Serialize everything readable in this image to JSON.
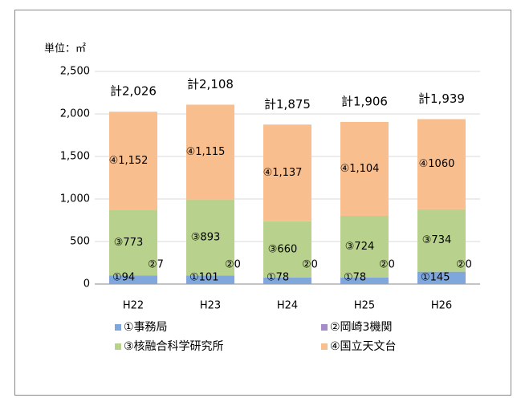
{
  "chart_data": {
    "type": "stacked_bar",
    "unit_label": "単位：㎡",
    "categories": [
      "H22",
      "H23",
      "H24",
      "H25",
      "H26"
    ],
    "series": [
      {
        "name": "①事務局",
        "color": "#7fa7dc",
        "values": [
          94,
          101,
          78,
          78,
          145
        ],
        "value_labels": [
          "①94",
          "①101",
          "①78",
          "①78",
          "①145"
        ]
      },
      {
        "name": "②岡崎3機関",
        "color": "#a68dca",
        "values": [
          7,
          0,
          0,
          0,
          0
        ],
        "value_labels": [
          "②7",
          "②0",
          "②0",
          "②0",
          "②0"
        ]
      },
      {
        "name": "③核融合科学研究所",
        "color": "#b8d18c",
        "values": [
          773,
          893,
          660,
          724,
          734
        ],
        "value_labels": [
          "③773",
          "③893",
          "③660",
          "③724",
          "③734"
        ]
      },
      {
        "name": "④国立天文台",
        "color": "#f9be8e",
        "values": [
          1152,
          1115,
          1137,
          1104,
          1060
        ],
        "value_labels": [
          "④1,152",
          "④1,115",
          "④1,137",
          "④1,104",
          "④1060"
        ]
      }
    ],
    "totals": [
      2026,
      2108,
      1875,
      1906,
      1939
    ],
    "total_labels": [
      "計2,026",
      "計2,108",
      "計1,875",
      "計1,906",
      "計1,939"
    ],
    "ylim": [
      0,
      2500
    ],
    "yticks": [
      0,
      500,
      {
        "value": 1000,
        "label": "1,000"
      },
      {
        "value": 1500,
        "label": "1,500"
      },
      {
        "value": 2000,
        "label": "2,000"
      },
      {
        "value": 2500,
        "label": "2,500"
      }
    ],
    "grid": true,
    "legend": "bottom"
  }
}
